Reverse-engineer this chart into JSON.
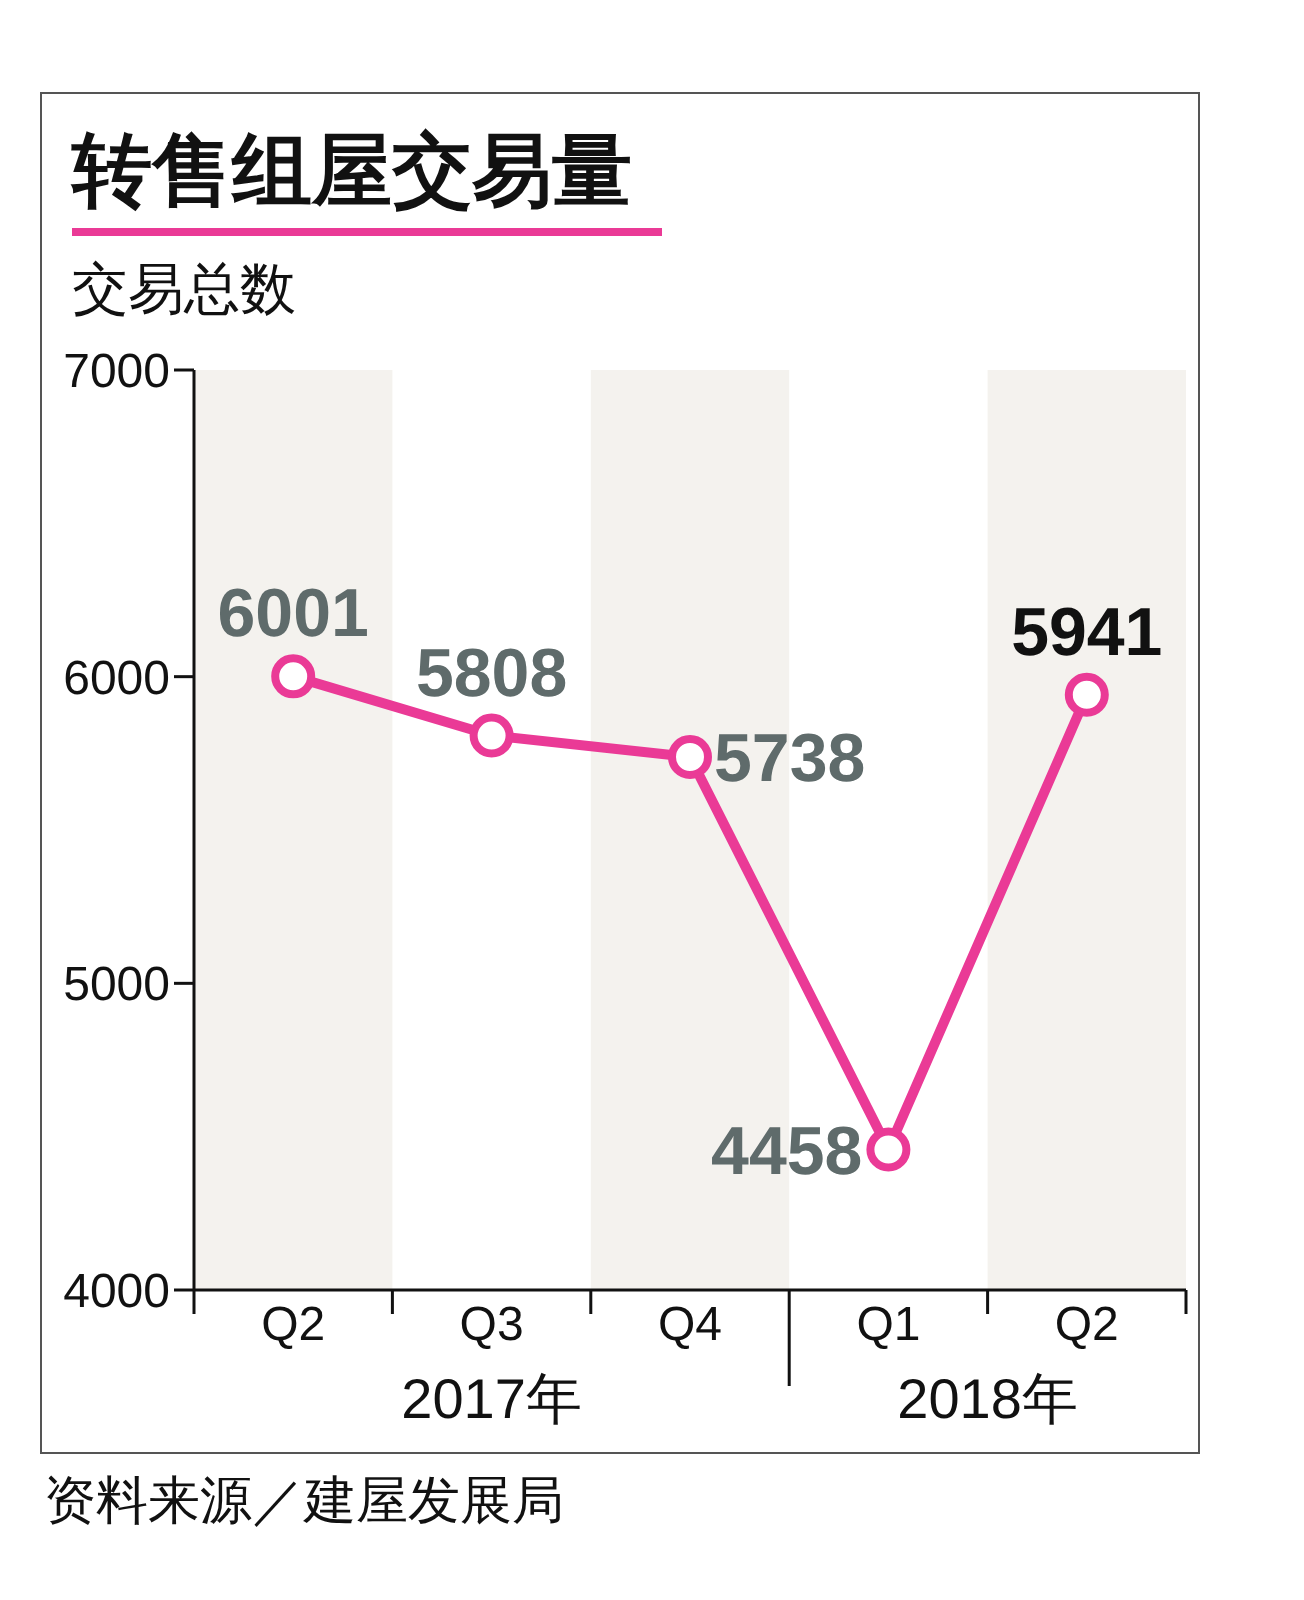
{
  "chart_data": {
    "type": "line",
    "title": "转售组屋交易量",
    "ylabel": "交易总数",
    "categories": [
      "Q2",
      "Q3",
      "Q4",
      "Q1",
      "Q2"
    ],
    "series": [
      {
        "color": "#ea3a96",
        "values": [
          6001,
          5808,
          5738,
          4458,
          5941
        ]
      }
    ],
    "ylim": [
      4000,
      7000
    ],
    "yticks": [
      4000,
      5000,
      6000,
      7000
    ],
    "marker": "circle",
    "data_labels": true,
    "annotations": [
      "2017年",
      "2018年",
      "资料来源／建屋发展局"
    ]
  }
}
